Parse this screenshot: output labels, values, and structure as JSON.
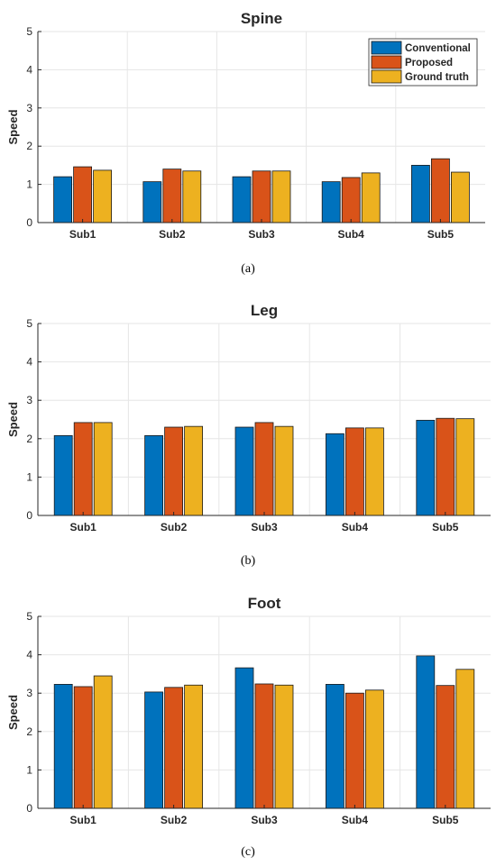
{
  "colors": {
    "Conventional": "#0072BD",
    "Proposed": "#D95319",
    "Ground truth": "#EDB120",
    "grid": "#e6e6e6",
    "axis": "#262626"
  },
  "chart_data": [
    {
      "type": "bar",
      "title": "Spine",
      "ylabel": "Speed",
      "xlabel": "",
      "ylim": [
        0,
        5
      ],
      "yticks": [
        0,
        1,
        2,
        3,
        4,
        5
      ],
      "grid": true,
      "legend": "top-right",
      "categories": [
        "Sub1",
        "Sub2",
        "Sub3",
        "Sub4",
        "Sub5"
      ],
      "series": [
        {
          "name": "Conventional",
          "values": [
            1.2,
            1.07,
            1.2,
            1.07,
            1.5
          ]
        },
        {
          "name": "Proposed",
          "values": [
            1.46,
            1.4,
            1.35,
            1.18,
            1.67
          ]
        },
        {
          "name": "Ground truth",
          "values": [
            1.37,
            1.35,
            1.35,
            1.3,
            1.32
          ]
        }
      ],
      "caption": "(a)"
    },
    {
      "type": "bar",
      "title": "Leg",
      "ylabel": "Speed",
      "xlabel": "",
      "ylim": [
        0,
        5
      ],
      "yticks": [
        0,
        1,
        2,
        3,
        4,
        5
      ],
      "grid": true,
      "legend": "none",
      "categories": [
        "Sub1",
        "Sub2",
        "Sub3",
        "Sub4",
        "Sub5"
      ],
      "series": [
        {
          "name": "Conventional",
          "values": [
            2.08,
            2.08,
            2.3,
            2.13,
            2.48
          ]
        },
        {
          "name": "Proposed",
          "values": [
            2.42,
            2.3,
            2.42,
            2.28,
            2.53
          ]
        },
        {
          "name": "Ground truth",
          "values": [
            2.42,
            2.32,
            2.32,
            2.28,
            2.52
          ]
        }
      ],
      "caption": "(b)"
    },
    {
      "type": "bar",
      "title": "Foot",
      "ylabel": "Speed",
      "xlabel": "",
      "ylim": [
        0,
        5
      ],
      "yticks": [
        0,
        1,
        2,
        3,
        4,
        5
      ],
      "grid": true,
      "legend": "none",
      "categories": [
        "Sub1",
        "Sub2",
        "Sub3",
        "Sub4",
        "Sub5"
      ],
      "series": [
        {
          "name": "Conventional",
          "values": [
            3.23,
            3.03,
            3.66,
            3.23,
            3.97
          ]
        },
        {
          "name": "Proposed",
          "values": [
            3.17,
            3.15,
            3.24,
            3.0,
            3.2
          ]
        },
        {
          "name": "Ground truth",
          "values": [
            3.45,
            3.21,
            3.21,
            3.08,
            3.62
          ]
        }
      ],
      "caption": "(c)"
    }
  ]
}
